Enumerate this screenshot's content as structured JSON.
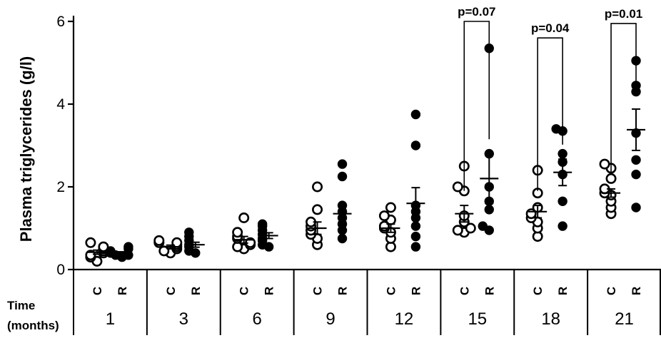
{
  "chart_data": {
    "type": "scatter",
    "ylabel": "Plasma triglycerides  (g/l)",
    "ylim": [
      0,
      6
    ],
    "yticks": [
      "0",
      "2",
      "4",
      "6"
    ],
    "time_label_line1": "Time",
    "time_label_line2": "(months)",
    "group_labels": [
      "C",
      "R"
    ],
    "series_styles": {
      "C": {
        "marker": "open-circle",
        "color": "#000000"
      },
      "R": {
        "marker": "filled-circle",
        "color": "#000000"
      }
    },
    "timepoints": [
      {
        "month": "1",
        "C": {
          "values": [
            0.2,
            0.3,
            0.35,
            0.4,
            0.45,
            0.5,
            0.55,
            0.65
          ],
          "mean": 0.42,
          "sem": 0.05
        },
        "R": {
          "values": [
            0.3,
            0.35,
            0.35,
            0.4,
            0.45,
            0.5,
            0.55
          ],
          "mean": 0.4,
          "sem": 0.03
        }
      },
      {
        "month": "3",
        "C": {
          "values": [
            0.4,
            0.45,
            0.5,
            0.55,
            0.6,
            0.65,
            0.65,
            0.7
          ],
          "mean": 0.55,
          "sem": 0.04
        },
        "R": {
          "values": [
            0.4,
            0.45,
            0.55,
            0.6,
            0.7,
            0.8,
            0.9
          ],
          "mean": 0.6,
          "sem": 0.06
        }
      },
      {
        "month": "6",
        "C": {
          "values": [
            0.5,
            0.55,
            0.6,
            0.65,
            0.75,
            0.8,
            0.9,
            1.25
          ],
          "mean": 0.72,
          "sem": 0.08
        },
        "R": {
          "values": [
            0.55,
            0.6,
            0.7,
            0.75,
            0.85,
            0.95,
            1.05,
            1.1
          ],
          "mean": 0.82,
          "sem": 0.07
        }
      },
      {
        "month": "9",
        "C": {
          "values": [
            0.6,
            0.75,
            0.85,
            0.95,
            1.05,
            1.15,
            1.45,
            2.0
          ],
          "mean": 1.0,
          "sem": 0.15
        },
        "R": {
          "values": [
            0.75,
            0.95,
            1.1,
            1.25,
            1.4,
            1.55,
            2.25,
            2.55
          ],
          "mean": 1.35,
          "sem": 0.2
        }
      },
      {
        "month": "12",
        "C": {
          "values": [
            0.55,
            0.75,
            0.9,
            1.0,
            1.05,
            1.2,
            1.3,
            1.5
          ],
          "mean": 1.0,
          "sem": 0.1
        },
        "R": {
          "values": [
            0.55,
            0.8,
            1.05,
            1.25,
            1.4,
            1.55,
            3.0,
            3.75
          ],
          "mean": 1.6,
          "sem": 0.38
        }
      },
      {
        "month": "15",
        "C": {
          "values": [
            0.9,
            0.95,
            1.0,
            1.15,
            1.3,
            1.9,
            2.0,
            2.5
          ],
          "mean": 1.35,
          "sem": 0.2
        },
        "R": {
          "values": [
            0.95,
            1.05,
            1.45,
            1.65,
            2.0,
            2.8,
            5.35
          ],
          "mean": 2.2,
          "sem": 0.6
        }
      },
      {
        "month": "18",
        "C": {
          "values": [
            0.8,
            1.0,
            1.15,
            1.25,
            1.35,
            1.5,
            1.85,
            2.4
          ],
          "mean": 1.4,
          "sem": 0.15
        },
        "R": {
          "values": [
            1.05,
            1.65,
            2.3,
            2.6,
            2.8,
            3.35,
            3.4
          ],
          "mean": 2.35,
          "sem": 0.32
        }
      },
      {
        "month": "21",
        "C": {
          "values": [
            1.35,
            1.5,
            1.65,
            1.8,
            1.85,
            1.95,
            2.2,
            2.45,
            2.55
          ],
          "mean": 1.85,
          "sem": 0.1
        },
        "R": {
          "values": [
            1.5,
            2.3,
            2.65,
            3.3,
            4.3,
            4.45,
            5.05
          ],
          "mean": 3.38,
          "sem": 0.5
        }
      }
    ],
    "annotations": [
      {
        "month": "15",
        "text": "p=0.07",
        "bracket_y": 6.0
      },
      {
        "month": "18",
        "text": "p=0.04",
        "bracket_y": 5.6
      },
      {
        "month": "21",
        "text": "p=0.01",
        "bracket_y": 5.95
      }
    ]
  }
}
